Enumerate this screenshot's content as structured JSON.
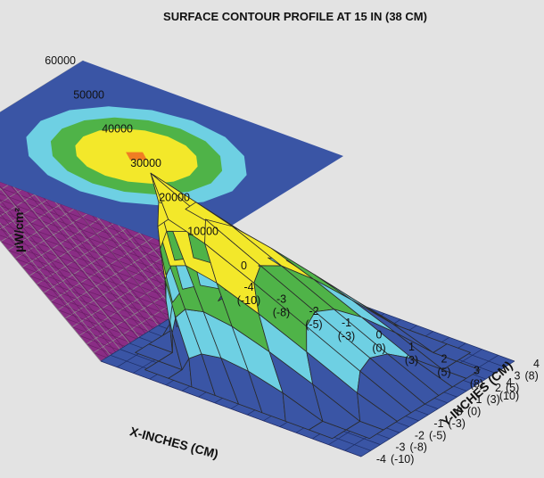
{
  "chart_data": {
    "type": "surface3d",
    "title": "SURFACE CONTOUR PROFILE AT 15 IN (38 CM)",
    "zlabel": "µW/cm²",
    "xlabel": "X-INCHES (CM)",
    "ylabel": "Y-INCHES (CM)",
    "zlim": [
      0,
      60000
    ],
    "z_ticks": [
      "60000",
      "50000",
      "40000",
      "30000",
      "20000",
      "10000",
      "0"
    ],
    "x_ticks": [
      {
        "in": "-4",
        "cm": "(-10)"
      },
      {
        "in": "-3",
        "cm": "(-8)"
      },
      {
        "in": "-2",
        "cm": "(-5)"
      },
      {
        "in": "-1",
        "cm": "(-3)"
      },
      {
        "in": "0",
        "cm": "(0)"
      },
      {
        "in": "1",
        "cm": "(3)"
      },
      {
        "in": "2",
        "cm": "(5)"
      },
      {
        "in": "3",
        "cm": "(8)"
      },
      {
        "in": "4",
        "cm": "(10)"
      }
    ],
    "y_ticks": [
      {
        "in": "-4",
        "cm": "(-10)"
      },
      {
        "in": "-3",
        "cm": "(-8)"
      },
      {
        "in": "-2",
        "cm": "(-5)"
      },
      {
        "in": "-1",
        "cm": "(-3)"
      },
      {
        "in": "0",
        "cm": "(0)"
      },
      {
        "in": "1",
        "cm": "(3)"
      },
      {
        "in": "2",
        "cm": "(5)"
      },
      {
        "in": "3",
        "cm": "(8)"
      },
      {
        "in": "4",
        "cm": "(10)"
      }
    ],
    "peak_value": 55000,
    "contour_levels": [
      {
        "min": 0,
        "max": 10000,
        "color": "#3a55a5"
      },
      {
        "min": 10000,
        "max": 20000,
        "color": "#6ed0e3"
      },
      {
        "min": 20000,
        "max": 30000,
        "color": "#4fb348"
      },
      {
        "min": 30000,
        "max": 50000,
        "color": "#f3e82a"
      },
      {
        "min": 50000,
        "max": 60000,
        "color": "#f07d23"
      }
    ],
    "wall_colors": {
      "left": "#c6c6c6",
      "right": "#8a2d85"
    }
  }
}
